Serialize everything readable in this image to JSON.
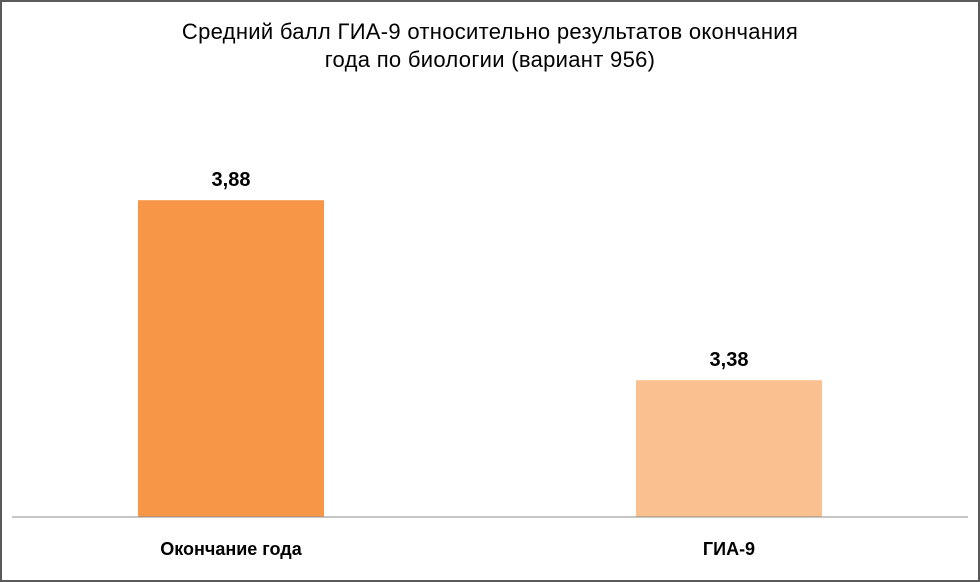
{
  "chart_data": {
    "type": "bar",
    "title_lines": [
      "Средний балл ГИА-9 относительно результатов окончания",
      "года по биологии (вариант 956)"
    ],
    "categories": [
      "Окончание года",
      "ГИА-9"
    ],
    "values": [
      3.88,
      3.38
    ],
    "value_labels": [
      "3,88",
      "3,38"
    ],
    "bar_colors": [
      "#f79646",
      "#fac090"
    ],
    "ylim": [
      3.0,
      4.0
    ],
    "grid": false,
    "legend": "none"
  }
}
